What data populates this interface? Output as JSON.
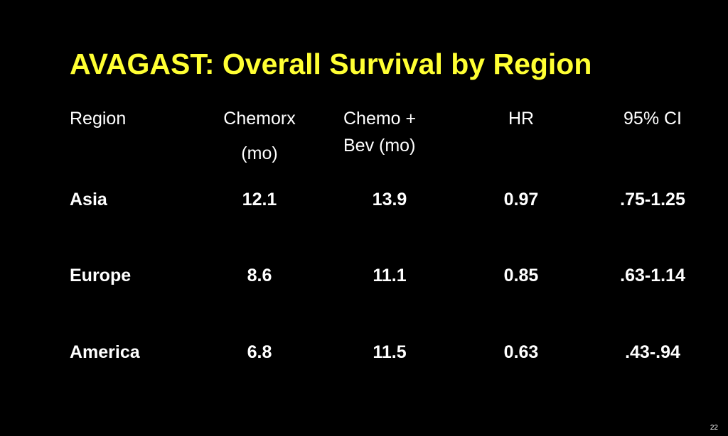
{
  "slide": {
    "title": "AVAGAST: Overall Survival by Region",
    "page_number": "22"
  },
  "table": {
    "headers": {
      "region": "Region",
      "chemorx_line1": "Chemorx",
      "chemorx_line2": "(mo)",
      "chemo_bev_line1": "Chemo +",
      "chemo_bev_line2": "Bev (mo)",
      "hr": "HR",
      "ci": "95% CI"
    },
    "rows": [
      {
        "region": "Asia",
        "chemorx": "12.1",
        "chemo_bev": "13.9",
        "hr": "0.97",
        "ci": ".75-1.25"
      },
      {
        "region": "Europe",
        "chemorx": "8.6",
        "chemo_bev": "11.1",
        "hr": "0.85",
        "ci": ".63-1.14"
      },
      {
        "region": "America",
        "chemorx": "6.8",
        "chemo_bev": "11.5",
        "hr": "0.63",
        "ci": ".43-.94"
      }
    ]
  },
  "colors": {
    "background": "#000000",
    "title": "#ffff33",
    "text": "#ffffff"
  }
}
